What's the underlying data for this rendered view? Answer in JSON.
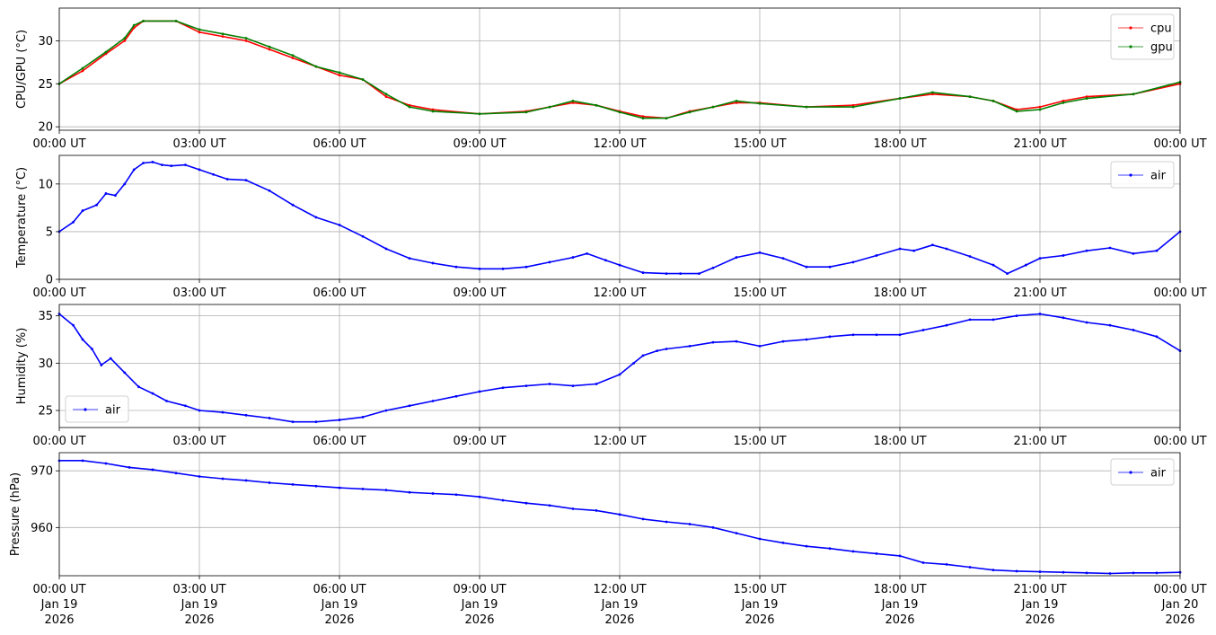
{
  "chart_data": [
    {
      "type": "scatter",
      "ylabel": "CPU/GPU (°C)",
      "xlim": [
        0,
        24
      ],
      "ylim": [
        19.6,
        33.8
      ],
      "yticks": [
        20,
        25,
        30
      ],
      "grid": true,
      "legend": "top-right",
      "x_tick_labels": [
        "00:00 UT",
        "03:00 UT",
        "06:00 UT",
        "09:00 UT",
        "12:00 UT",
        "15:00 UT",
        "18:00 UT",
        "21:00 UT",
        "00:00 UT"
      ],
      "series": [
        {
          "name": "cpu",
          "color": "#ff0000",
          "x": [
            0,
            0.5,
            1.0,
            1.4,
            1.6,
            1.8,
            2.5,
            3.0,
            3.5,
            4.0,
            4.5,
            5.0,
            5.5,
            6.0,
            6.5,
            7.0,
            7.5,
            8.0,
            9.0,
            10.0,
            10.5,
            11.0,
            11.5,
            12.0,
            12.5,
            13.0,
            13.5,
            14.0,
            14.5,
            15.0,
            16.0,
            17.0,
            18.0,
            18.7,
            19.5,
            20.0,
            20.5,
            21.0,
            21.5,
            22.0,
            23.0,
            24.0
          ],
          "y": [
            25.0,
            26.5,
            28.5,
            30.0,
            31.5,
            32.3,
            32.3,
            31.0,
            30.5,
            30.0,
            29.0,
            28.0,
            27.0,
            26.0,
            25.5,
            23.5,
            22.5,
            22.0,
            21.5,
            21.8,
            22.3,
            22.8,
            22.5,
            21.8,
            21.2,
            21.0,
            21.8,
            22.3,
            22.8,
            22.8,
            22.3,
            22.5,
            23.3,
            23.8,
            23.5,
            23.0,
            22.0,
            22.3,
            23.0,
            23.5,
            23.8,
            25.0
          ]
        },
        {
          "name": "gpu",
          "color": "#008000",
          "x": [
            0,
            0.5,
            1.0,
            1.4,
            1.6,
            1.8,
            2.5,
            3.0,
            3.5,
            4.0,
            4.5,
            5.0,
            5.5,
            6.0,
            6.5,
            7.0,
            7.5,
            8.0,
            9.0,
            10.0,
            10.5,
            11.0,
            11.5,
            12.0,
            12.5,
            13.0,
            13.5,
            14.0,
            14.5,
            15.0,
            16.0,
            17.0,
            18.0,
            18.7,
            19.5,
            20.0,
            20.5,
            21.0,
            21.5,
            22.0,
            23.0,
            24.0
          ],
          "y": [
            25.0,
            26.8,
            28.7,
            30.3,
            31.8,
            32.3,
            32.3,
            31.3,
            30.8,
            30.3,
            29.3,
            28.3,
            27.0,
            26.3,
            25.5,
            23.8,
            22.3,
            21.8,
            21.5,
            21.7,
            22.3,
            23.0,
            22.5,
            21.7,
            21.0,
            21.0,
            21.7,
            22.3,
            23.0,
            22.7,
            22.3,
            22.3,
            23.3,
            24.0,
            23.5,
            23.0,
            21.8,
            22.0,
            22.8,
            23.3,
            23.8,
            25.2
          ]
        }
      ]
    },
    {
      "type": "scatter",
      "ylabel": "Temperature (°C)",
      "xlim": [
        0,
        24
      ],
      "ylim": [
        0,
        13
      ],
      "yticks": [
        0,
        5,
        10
      ],
      "grid": true,
      "legend": "top-right",
      "x_tick_labels": [
        "00:00 UT",
        "03:00 UT",
        "06:00 UT",
        "09:00 UT",
        "12:00 UT",
        "15:00 UT",
        "18:00 UT",
        "21:00 UT",
        "00:00 UT"
      ],
      "series": [
        {
          "name": "air",
          "color": "#0000ff",
          "x": [
            0,
            0.3,
            0.5,
            0.8,
            1.0,
            1.2,
            1.4,
            1.6,
            1.8,
            2.0,
            2.2,
            2.4,
            2.7,
            3.0,
            3.3,
            3.6,
            4.0,
            4.5,
            5.0,
            5.5,
            6.0,
            6.5,
            7.0,
            7.5,
            8.0,
            8.5,
            9.0,
            9.5,
            10.0,
            10.5,
            11.0,
            11.3,
            11.7,
            12.0,
            12.5,
            13.0,
            13.3,
            13.7,
            14.0,
            14.5,
            15.0,
            15.5,
            16.0,
            16.5,
            17.0,
            17.5,
            18.0,
            18.3,
            18.7,
            19.0,
            19.5,
            20.0,
            20.3,
            20.7,
            21.0,
            21.5,
            22.0,
            22.5,
            23.0,
            23.5,
            24.0
          ],
          "y": [
            5.0,
            6.0,
            7.2,
            7.8,
            9.0,
            8.8,
            10.0,
            11.5,
            12.2,
            12.3,
            12.0,
            11.9,
            12.0,
            11.5,
            11.0,
            10.5,
            10.4,
            9.3,
            7.8,
            6.5,
            5.7,
            4.5,
            3.2,
            2.2,
            1.7,
            1.3,
            1.1,
            1.1,
            1.3,
            1.8,
            2.3,
            2.7,
            2.0,
            1.5,
            0.7,
            0.6,
            0.6,
            0.6,
            1.2,
            2.3,
            2.8,
            2.2,
            1.3,
            1.3,
            1.8,
            2.5,
            3.2,
            3.0,
            3.6,
            3.2,
            2.4,
            1.5,
            0.6,
            1.5,
            2.2,
            2.5,
            3.0,
            3.3,
            2.7,
            3.0,
            5.0
          ]
        }
      ]
    },
    {
      "type": "scatter",
      "ylabel": "Humidity (%)",
      "xlim": [
        0,
        24
      ],
      "ylim": [
        23.2,
        36.2
      ],
      "yticks": [
        25,
        30,
        35
      ],
      "grid": true,
      "legend": "lower-left",
      "x_tick_labels": [
        "00:00 UT",
        "03:00 UT",
        "06:00 UT",
        "09:00 UT",
        "12:00 UT",
        "15:00 UT",
        "18:00 UT",
        "21:00 UT",
        "00:00 UT"
      ],
      "series": [
        {
          "name": "air",
          "color": "#0000ff",
          "x": [
            0,
            0.3,
            0.5,
            0.7,
            0.9,
            1.1,
            1.4,
            1.7,
            2.0,
            2.3,
            2.7,
            3.0,
            3.5,
            4.0,
            4.5,
            5.0,
            5.5,
            6.0,
            6.5,
            7.0,
            7.5,
            8.0,
            8.5,
            9.0,
            9.5,
            10.0,
            10.5,
            11.0,
            11.5,
            12.0,
            12.3,
            12.5,
            12.8,
            13.0,
            13.5,
            14.0,
            14.5,
            15.0,
            15.5,
            16.0,
            16.5,
            17.0,
            17.5,
            18.0,
            18.5,
            19.0,
            19.5,
            20.0,
            20.5,
            21.0,
            21.5,
            22.0,
            22.5,
            23.0,
            23.5,
            24.0
          ],
          "y": [
            35.2,
            34.0,
            32.5,
            31.5,
            29.8,
            30.5,
            29.0,
            27.5,
            26.8,
            26.0,
            25.5,
            25.0,
            24.8,
            24.5,
            24.2,
            23.8,
            23.8,
            24.0,
            24.3,
            25.0,
            25.5,
            26.0,
            26.5,
            27.0,
            27.4,
            27.6,
            27.8,
            27.6,
            27.8,
            28.8,
            30.0,
            30.8,
            31.3,
            31.5,
            31.8,
            32.2,
            32.3,
            31.8,
            32.3,
            32.5,
            32.8,
            33.0,
            33.0,
            33.0,
            33.5,
            34.0,
            34.6,
            34.6,
            35.0,
            35.2,
            34.8,
            34.3,
            34.0,
            33.5,
            32.8,
            31.3
          ]
        }
      ]
    },
    {
      "type": "scatter",
      "ylabel": "Pressure (hPa)",
      "xlim": [
        0,
        24
      ],
      "ylim": [
        951.5,
        973.2
      ],
      "yticks": [
        960,
        970
      ],
      "grid": true,
      "legend": "top-right",
      "x_tick_labels": [
        "00:00 UT\nJan 19\n2026",
        "03:00 UT\nJan 19\n2026",
        "06:00 UT\nJan 19\n2026",
        "09:00 UT\nJan 19\n2026",
        "12:00 UT\nJan 19\n2026",
        "15:00 UT\nJan 19\n2026",
        "18:00 UT\nJan 19\n2026",
        "21:00 UT\nJan 19\n2026",
        "00:00 UT\nJan 20\n2026"
      ],
      "series": [
        {
          "name": "air",
          "color": "#0000ff",
          "x": [
            0,
            0.5,
            1.0,
            1.5,
            2.0,
            2.5,
            3.0,
            3.5,
            4.0,
            4.5,
            5.0,
            5.5,
            6.0,
            6.5,
            7.0,
            7.5,
            8.0,
            8.5,
            9.0,
            9.5,
            10.0,
            10.5,
            11.0,
            11.5,
            12.0,
            12.5,
            13.0,
            13.5,
            14.0,
            14.5,
            15.0,
            15.5,
            16.0,
            16.5,
            17.0,
            17.5,
            18.0,
            18.5,
            19.0,
            19.5,
            20.0,
            20.5,
            21.0,
            21.5,
            22.0,
            22.5,
            23.0,
            23.5,
            24.0
          ],
          "y": [
            971.8,
            971.8,
            971.3,
            970.6,
            970.2,
            969.6,
            969.0,
            968.6,
            968.3,
            967.9,
            967.6,
            967.3,
            967.0,
            966.8,
            966.6,
            966.2,
            966.0,
            965.8,
            965.4,
            964.8,
            964.3,
            963.9,
            963.3,
            963.0,
            962.3,
            961.5,
            961.0,
            960.6,
            960.0,
            959.0,
            958.0,
            957.3,
            956.7,
            956.3,
            955.8,
            955.4,
            955.0,
            953.8,
            953.5,
            953.0,
            952.5,
            952.3,
            952.2,
            952.1,
            952.0,
            951.9,
            952.0,
            952.0,
            952.1
          ]
        }
      ]
    }
  ]
}
